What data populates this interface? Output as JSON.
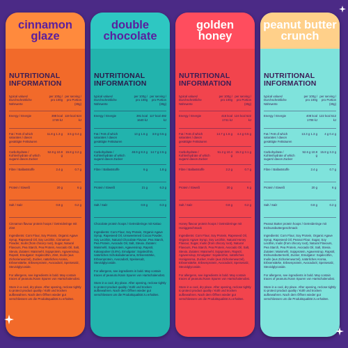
{
  "panels": [
    {
      "flavor_name": "cinnamon glaze",
      "head_bg": "#ff8a3d",
      "head_fg": "#5a1f9e",
      "body_bg": "#f26a2a",
      "text_fg": "#3b1c55",
      "title": "NUTRITIONAL INFORMATION",
      "col_labels": [
        "typical values/ Durchschnittliche Nährwerte",
        "per 100g / pro 100g",
        "per serving / pro Portion (30g)"
      ],
      "rows": [
        [
          "Energy / Energie",
          "398 kcal 1749 kJ",
          "119 kcal 524 kJ"
        ],
        [
          "Fat / Fett of which saturates / davon gesättigte Fettsäuren",
          "11.8 g 1.3 g",
          "3.5 g 0.4 g"
        ],
        [
          "Carbohydrate / Kohlenhydrate of which sugars/ davon Zucker",
          "52.8 g 10.8 g",
          "15.8 g 3.2 g"
        ],
        [
          "Fibre / Ballaststoffe",
          "2.4 g",
          "0.7 g"
        ],
        [
          "Protein / Eiweiß",
          "20 g",
          "6 g"
        ],
        [
          "Salt / Salz",
          "0.8 g",
          "0.2 g"
        ]
      ],
      "desc": "Cinnamon flavour protein hoops / Getreideringe mit Zimt",
      "ingredients": "Ingredients: Corn Flour, Soy Protein, Organic Agave Syrup, Rapeseed Oil, Soy Lecithin, Cinnamon Powder, Inulin (from chicory root), Sugar, Natural Flavours, Pea Starch, Pea Protein, Avocado Oil, Salt, Stevia. Zutaten: Maismehl, Sojaprotein, Agavensirup, Rapsöl, Emulgator: Sojalecithin, Zimt, Inulin (aus Zichorienwurzel), Zucker, natürliches Aroma, Erbsenstärke, Erbsenprotein, Avocadoöl, Speisesalz, Steviolglycoside.",
      "allergy": "For allergens, see ingredients in bold. May contain traces of peanuts./Kann Spuren von Hartschalenobst.",
      "storage": "Store in a cool, dry place. After opening, reclose tightly to protect product quality / Kühl und trocken aufbewahren. Nach dem Öffnen wieder gut verschliessen um die Produktqualität zu erhalten."
    },
    {
      "flavor_name": "double chocolate",
      "head_bg": "#2ec7c2",
      "head_fg": "#5a1f9e",
      "body_bg": "#22b3ad",
      "text_fg": "#2a1a4a",
      "title": "NUTRITIONAL INFORMATION",
      "col_labels": [
        "typical values/ Durchschnittliche Nährwerte",
        "per 100g / pro 100g",
        "per serving / pro Portion (30g)"
      ],
      "rows": [
        [
          "Energy / Energie",
          "391 kcal 1640 kJ",
          "117 kcal 492 kJ"
        ],
        [
          "Fat / Fett of which saturates / davon gesättigte Fettsäuren",
          "13 g 1.6 g",
          "3.9 g 0.5 g"
        ],
        [
          "Carbohydrate / Kohlenhydrate of which sugars/ davon Zucker",
          "48.9 g 8.3 g",
          "14.7 g 2.5 g"
        ],
        [
          "Fibre / Ballaststoffe",
          "6 g",
          "1.8 g"
        ],
        [
          "Protein / Eiweiß",
          "21 g",
          "6.3 g"
        ],
        [
          "Salt / Salz",
          "0.9 g",
          "0.3 g"
        ]
      ],
      "desc": "Chocolate protein hoops / Getreideringe mit Kakao",
      "ingredients": "Ingredients: Corn Flour, Soy Protein, Organic Agave Syrup, Rapeseed Oil, Unsweetened Cocoa Powder, Soy Lecithin, Natural Chocolate Flavour, Pea Starch, Pea Protein, Avocado Oil, Salt, Stevia. Zutaten: Maismehl, Sojaprotein, Agavensirup, Rapsöl, Kakaopulver (6.8%), Emulgator: Sojalecithin, natürliches Schokoladenaroma, Erbsenstärke, Erbsenprotein, Avocadoöl, Speisesalz, Steviolglycoside.",
      "allergy": "For allergens, see ingredients in bold. May contain traces of peanuts./Kann Spuren von Hartschalenobst.",
      "storage": "Store in a cool, dry place. After opening, reclose tightly to protect product quality / Kühl und trocken aufbewahren. Nach dem Öffnen wieder gut verschliessen um die Produktqualität zu erhalten."
    },
    {
      "flavor_name": "golden honey",
      "head_bg": "#ff4d5e",
      "head_fg": "#ffffff",
      "body_bg": "#f2444d",
      "text_fg": "#3b1c55",
      "title": "NUTRITIONAL INFORMATION",
      "col_labels": [
        "typical values/ Durchschnittliche Nährwerte",
        "per 100g / pro 100g",
        "per serving / pro Portion (30g)"
      ],
      "rows": [
        [
          "Energy / Energie",
          "415 kcal 1741 kJ",
          "124 kcal 522 kJ"
        ],
        [
          "Fat / Fett of which saturates / davon gesättigte Fettsäuren",
          "14.7 g 1.6 g",
          "4.4 g 0.5 g"
        ],
        [
          "Carbohydrate / Kohlenhydrate of which sugars/ davon Zucker",
          "51.2 g 10.4 g",
          "15.3 g 3.1 g"
        ],
        [
          "Fibre / Ballaststoffe",
          "2.2 g",
          "0.7 g"
        ],
        [
          "Protein / Eiweiß",
          "20 g",
          "6 g"
        ],
        [
          "Salt / Salz",
          "0.8 g",
          "0.2 g"
        ]
      ],
      "desc": "Honey flavour protein hoops / Getreideringe mit Honiggeschmack",
      "ingredients": "Ingredients: Corn Flour, Soy Protein, Rapeseed Oil, Organic Agave Syrup, Soy Lecithin, Natural Honey Flavour, Sugar, Inulin (from chicory root), Natural Flavours, Pea Starch, Pea Protein, Avocado Oil, Salt, Stevia. Zutaten: Maismehl, Sojaprotein, Rapsöl, Agavensirup, Emulgator: Sojalecithin, natürliches Honigaroma, Zucker, Inulin (aus Zichorienwurzel), Erbsenstärke, Erbsenprotein, Avocadoöl, Speisesalz, Steviolglycoside.",
      "allergy": "For allergens, see ingredients in bold. May contain traces of peanuts./Kann Spuren von Hartschalenobst.",
      "storage": "Store in a cool, dry place. After opening, reclose tightly to protect product quality / Kühl und trocken aufbewahren. Nach dem Öffnen wieder gut verschliessen um die Produktqualität zu erhalten."
    },
    {
      "flavor_name": "peanut butter crunch",
      "head_bg": "#ffd08a",
      "head_fg": "#ffffff",
      "body_bg": "#7fe3dc",
      "text_fg": "#3b1c55",
      "title": "NUTRITIONAL INFORMATION",
      "col_labels": [
        "typical values/ Durchschnittliche Nährwerte",
        "per 100g / pro 100g",
        "per serving / pro Portion (30g)"
      ],
      "rows": [
        [
          "Energy / Energie",
          "408 kcal 1708 kJ",
          "122 kcal 512 kJ"
        ],
        [
          "Fat / Fett of which saturates / davon gesättigte Fettsäuren",
          "13.3 g 1.3 g",
          "4 g 0.4 g"
        ],
        [
          "Carbohydrate / Kohlenhydrate of which sugars/ davon Zucker",
          "52.6 g 10.8 g",
          "15.8 g 3.3 g"
        ],
        [
          "Fibre / Ballaststoffe",
          "2.4 g",
          "0.7 g"
        ],
        [
          "Protein / Eiweiß",
          "20 g",
          "6 g"
        ],
        [
          "Salt / Salz",
          "0.8 g",
          "0.2 g"
        ]
      ],
      "desc": "Peanut Butter protein hoops / Getreideringe mit Erdnussbuttergeschmack",
      "ingredients": "Ingredients: Corn Flour, Soy Protein, Organic Agave Syrup, Rapeseed Oil, Peanut Flour, Sugar, Soy Lecithin, Inulin (from chicory root), Natural Flavours, Pea Starch, Pea Protein, Avocado Oil, Salt, Stevia. Zutaten: Maismehl, Sojaprotein, Agavensirup, Rapsöl, Erdnussbuttermehl, Zucker, Emulgator: Sojalecithin, Inulin (aus Zichorienwurzel), natürliches Aroma, Erbsenstärke, Erbsenprotein, Avocadoöl, Speisesalz, Steviolglycoside.",
      "allergy": "For allergens, see ingredients in bold. May contain traces of peanuts./Kann Spuren von Hartschalenobst.",
      "storage": "Store in a cool, dry place. After opening, reclose tightly to protect product quality / Kühl und trocken aufbewahren. Nach dem Öffnen wieder gut verschliessen um die Produktqualität zu erhalten."
    }
  ],
  "sparkle_color": "#ffffff"
}
